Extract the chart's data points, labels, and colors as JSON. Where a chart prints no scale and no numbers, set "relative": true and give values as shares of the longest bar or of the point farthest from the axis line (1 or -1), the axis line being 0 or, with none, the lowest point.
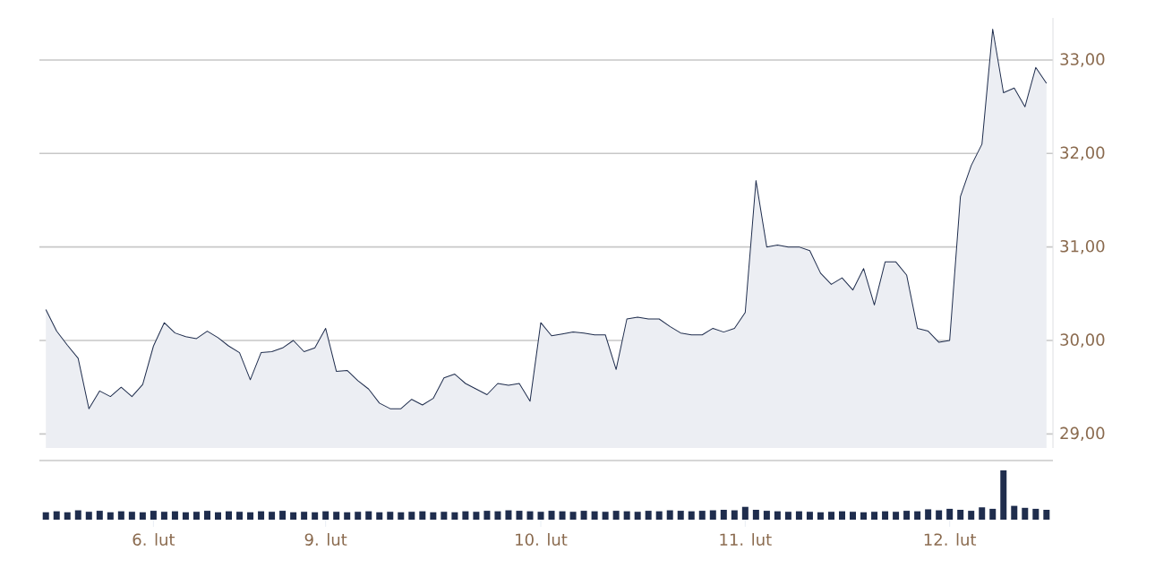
{
  "chart_data": [
    {
      "type": "area",
      "color": "#1f2d4d",
      "grid": "y",
      "tick_labels": "y",
      "ylim": [
        28.85,
        33.45
      ],
      "yticks": [
        {
          "value": 29,
          "label": "29,00"
        },
        {
          "value": 30,
          "label": "30,00"
        },
        {
          "value": 31,
          "label": "31,00"
        },
        {
          "value": 32,
          "label": "32,00"
        },
        {
          "value": 33,
          "label": "33,00"
        }
      ],
      "categories": [
        null,
        null,
        null,
        null,
        null,
        null,
        null,
        null,
        null,
        null,
        null,
        null,
        null,
        null,
        null,
        null,
        null,
        null,
        null,
        null,
        null,
        null,
        null,
        null,
        null,
        null,
        null,
        null,
        null,
        null,
        null,
        null,
        null,
        null,
        null,
        null,
        null,
        null,
        null,
        null,
        null,
        null,
        null,
        null,
        null,
        null,
        null,
        null,
        null,
        null,
        null,
        null,
        null,
        null,
        null,
        null,
        null,
        null,
        null,
        null,
        null,
        null,
        null,
        null,
        null,
        null,
        null,
        null,
        null,
        null,
        null,
        null,
        null,
        null,
        null,
        null,
        null,
        null,
        null,
        null,
        null,
        null,
        null,
        null,
        null,
        null,
        null,
        null,
        null,
        null,
        null,
        null,
        null,
        null
      ],
      "values": [
        30.33,
        30.1,
        29.95,
        29.81,
        29.27,
        29.46,
        29.4,
        29.5,
        29.4,
        29.53,
        29.94,
        30.19,
        30.08,
        30.04,
        30.02,
        30.1,
        30.03,
        29.94,
        29.87,
        29.58,
        29.87,
        29.88,
        29.92,
        30.0,
        29.88,
        29.92,
        30.13,
        29.67,
        29.68,
        29.57,
        29.48,
        29.33,
        29.27,
        29.27,
        29.37,
        29.31,
        29.38,
        29.6,
        29.64,
        29.54,
        29.48,
        29.42,
        29.54,
        29.52,
        29.54,
        29.35,
        30.19,
        30.05,
        30.07,
        30.09,
        30.08,
        30.06,
        30.06,
        29.69,
        30.23,
        30.25,
        30.23,
        30.23,
        30.15,
        30.08,
        30.06,
        30.06,
        30.13,
        30.09,
        30.13,
        30.3,
        31.71,
        31.0,
        31.02,
        31.0,
        31.0,
        30.96,
        30.72,
        30.6,
        30.67,
        30.54,
        30.77,
        30.38,
        30.84,
        30.84,
        30.7,
        30.13,
        30.1,
        29.98,
        30.0,
        31.54,
        31.87,
        32.1,
        33.33,
        32.65,
        32.7,
        32.5,
        32.92,
        32.75
      ]
    },
    {
      "type": "bar",
      "relative": true,
      "color": "#1f2d4d",
      "categories": [
        null,
        null,
        null,
        null,
        null,
        null,
        null,
        null,
        null,
        null,
        "6. lut",
        null,
        null,
        null,
        null,
        null,
        null,
        null,
        null,
        null,
        null,
        null,
        null,
        null,
        null,
        null,
        "9. lut",
        null,
        null,
        null,
        null,
        null,
        null,
        null,
        null,
        null,
        null,
        null,
        null,
        null,
        null,
        null,
        null,
        null,
        null,
        null,
        "10. lut",
        null,
        null,
        null,
        null,
        null,
        null,
        null,
        null,
        null,
        null,
        null,
        null,
        null,
        null,
        null,
        null,
        null,
        null,
        "11. lut",
        null,
        null,
        null,
        null,
        null,
        null,
        null,
        null,
        null,
        null,
        null,
        null,
        null,
        null,
        null,
        null,
        null,
        null,
        "12. lut",
        null,
        null,
        null,
        null,
        null,
        null,
        null,
        null,
        null
      ],
      "values": [
        0.15,
        0.17,
        0.15,
        0.19,
        0.16,
        0.18,
        0.15,
        0.17,
        0.16,
        0.15,
        0.18,
        0.16,
        0.17,
        0.15,
        0.16,
        0.18,
        0.15,
        0.17,
        0.16,
        0.15,
        0.17,
        0.16,
        0.18,
        0.15,
        0.16,
        0.15,
        0.17,
        0.16,
        0.15,
        0.16,
        0.17,
        0.15,
        0.16,
        0.15,
        0.16,
        0.17,
        0.15,
        0.16,
        0.15,
        0.17,
        0.16,
        0.18,
        0.17,
        0.19,
        0.18,
        0.17,
        0.16,
        0.18,
        0.17,
        0.16,
        0.18,
        0.17,
        0.16,
        0.18,
        0.17,
        0.16,
        0.18,
        0.17,
        0.19,
        0.18,
        0.17,
        0.18,
        0.19,
        0.2,
        0.19,
        0.26,
        0.2,
        0.18,
        0.17,
        0.16,
        0.17,
        0.16,
        0.15,
        0.16,
        0.17,
        0.16,
        0.15,
        0.16,
        0.17,
        0.16,
        0.18,
        0.17,
        0.21,
        0.19,
        0.22,
        0.2,
        0.18,
        0.25,
        0.22,
        1.0,
        0.28,
        0.24,
        0.22,
        0.2
      ]
    }
  ]
}
